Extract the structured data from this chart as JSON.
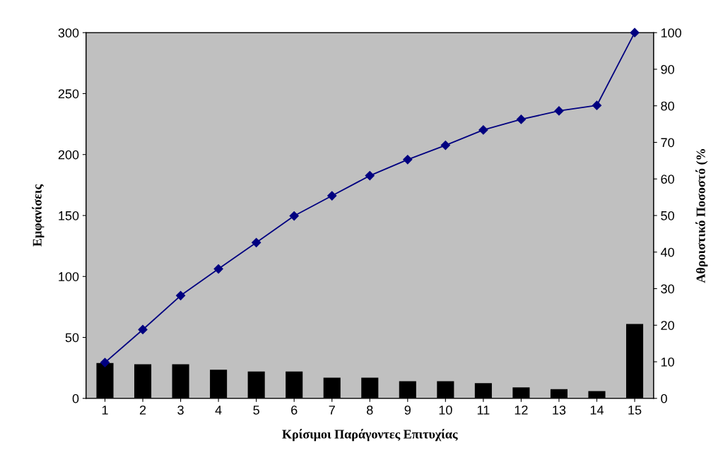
{
  "chart_data": {
    "type": "bar",
    "xlabel": "Κρίσιμοι Παράγοντες Επιτυχίας",
    "ylabel": "Εμφανίσεις",
    "y2label": "Αθροιστικό Ποσοστό (%",
    "categories": [
      "1",
      "2",
      "3",
      "4",
      "5",
      "6",
      "7",
      "8",
      "9",
      "10",
      "11",
      "12",
      "13",
      "14",
      "15"
    ],
    "series": [
      {
        "color": "#000000",
        "values": [
          29,
          28,
          28,
          23.5,
          22,
          22,
          17,
          17,
          14,
          14,
          12.5,
          9,
          7.5,
          6,
          61
        ]
      },
      {
        "type": "line",
        "axis": "y2",
        "color": "#000080",
        "marker": "diamond",
        "values": [
          9.8,
          18.8,
          28.1,
          35.4,
          42.6,
          49.9,
          55.4,
          60.9,
          65.3,
          69.2,
          73.4,
          76.3,
          78.6,
          80.1,
          100
        ]
      }
    ],
    "ylim": [
      0,
      300
    ],
    "yticks": [
      0,
      50,
      100,
      150,
      200,
      250,
      300
    ],
    "y2lim": [
      0,
      100
    ],
    "y2ticks": [
      0,
      10,
      20,
      30,
      40,
      50,
      60,
      70,
      80,
      90,
      100
    ],
    "grid": false,
    "legend": false
  }
}
